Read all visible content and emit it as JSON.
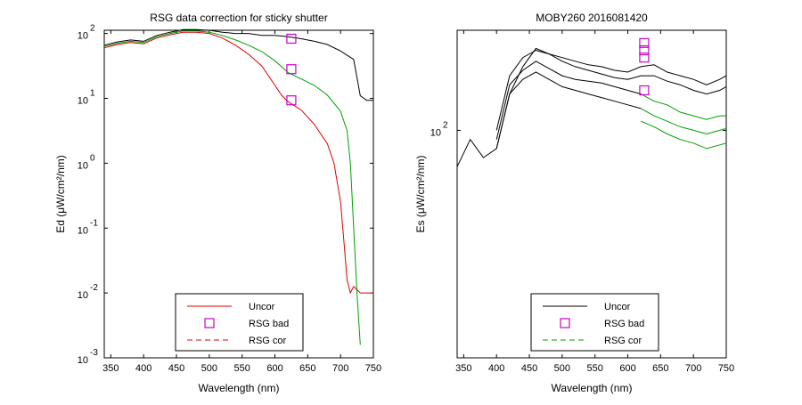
{
  "chart_data": [
    {
      "type": "line",
      "title": "RSG data correction for sticky shutter",
      "xlabel": "Wavelength (nm)",
      "ylabel": "Ed (μW/cm²/nm)",
      "xlim": [
        340,
        750
      ],
      "ylim_log10": [
        -3,
        2.05
      ],
      "yscale": "log",
      "grid": false,
      "legend_position": "bottom-center",
      "xticks": [
        350,
        400,
        450,
        500,
        550,
        600,
        650,
        700,
        750
      ],
      "yticks": [
        {
          "exp": 2,
          "base": "10",
          "power": "2"
        },
        {
          "exp": 1,
          "base": "10",
          "power": "1"
        },
        {
          "exp": 0,
          "base": "10",
          "power": "0"
        },
        {
          "exp": -1,
          "base": "10",
          "power": "-1"
        },
        {
          "exp": -2,
          "base": "10",
          "power": "-2"
        },
        {
          "exp": -3,
          "base": "10",
          "power": "-3"
        }
      ],
      "legend": [
        {
          "label": "Uncor",
          "color": "#e00000",
          "style": "solid"
        },
        {
          "label": "RSG bad",
          "color": "#cc00cc",
          "style": "square"
        },
        {
          "label": "RSG cor",
          "color": "#e00000",
          "style": "dashed"
        }
      ],
      "series": [
        {
          "color": "#000000",
          "x": [
            340,
            360,
            380,
            400,
            420,
            440,
            460,
            480,
            500,
            520,
            540,
            560,
            580,
            600,
            620,
            640,
            660,
            680,
            700,
            720,
            730,
            740,
            750
          ],
          "log10y": [
            1.82,
            1.87,
            1.9,
            1.88,
            1.97,
            2.02,
            2.06,
            2.06,
            2.05,
            2.02,
            2.0,
            2.0,
            1.97,
            1.97,
            1.95,
            1.92,
            1.88,
            1.83,
            1.73,
            1.6,
            1.04,
            0.97,
            0.97
          ]
        },
        {
          "color": "#00a000",
          "x": [
            340,
            360,
            380,
            400,
            420,
            440,
            460,
            480,
            500,
            520,
            540,
            560,
            580,
            600,
            620,
            640,
            660,
            680,
            700,
            710,
            715,
            720,
            725,
            730
          ],
          "log10y": [
            1.8,
            1.85,
            1.88,
            1.86,
            1.95,
            2.0,
            2.04,
            2.04,
            2.02,
            1.97,
            1.9,
            1.82,
            1.72,
            1.58,
            1.4,
            1.3,
            1.2,
            1.05,
            0.8,
            0.5,
            0.0,
            -1.0,
            -2.0,
            -2.8
          ]
        },
        {
          "color": "#e00000",
          "x": [
            340,
            360,
            380,
            400,
            420,
            440,
            460,
            480,
            500,
            520,
            540,
            560,
            580,
            600,
            610,
            620,
            640,
            660,
            680,
            690,
            700,
            705,
            710,
            715,
            720,
            730,
            740,
            750
          ],
          "log10y": [
            1.78,
            1.83,
            1.86,
            1.84,
            1.93,
            1.98,
            2.02,
            2.02,
            2.0,
            1.93,
            1.82,
            1.68,
            1.5,
            1.2,
            1.05,
            0.95,
            0.82,
            0.6,
            0.3,
            0.0,
            -0.6,
            -1.2,
            -1.8,
            -2.0,
            -1.9,
            -2.0,
            -2.0,
            -2.0
          ]
        }
      ],
      "markers": {
        "x": [
          625,
          625,
          625
        ],
        "log10y": [
          1.92,
          1.45,
          0.97
        ],
        "color": "#cc00cc"
      }
    },
    {
      "type": "line",
      "title": "MOBY260  2016081420",
      "xlabel": "Wavelength (nm)",
      "ylabel": "Es (μW/cm²/nm)",
      "xlim": [
        340,
        750
      ],
      "yscale": "log",
      "grid": false,
      "legend_position": "bottom-center",
      "xticks": [
        350,
        400,
        450,
        500,
        550,
        600,
        650,
        700,
        750
      ],
      "yticks": [
        {
          "exp": 2,
          "base": "10",
          "power": "2"
        }
      ],
      "legend": [
        {
          "label": "Uncor",
          "color": "#000000",
          "style": "solid"
        },
        {
          "label": "RSG bad",
          "color": "#cc00cc",
          "style": "square"
        },
        {
          "label": "RSG cor",
          "color": "#00a000",
          "style": "dashed"
        }
      ],
      "series": [
        {
          "color": "#000000",
          "x": [
            340,
            360,
            380,
            400,
            420,
            440,
            460,
            480,
            500,
            520,
            540,
            560,
            580,
            600,
            620,
            640,
            660,
            680,
            700,
            720,
            740,
            750
          ],
          "log10y": [
            1.8,
            1.95,
            1.85,
            1.9,
            2.2,
            2.35,
            2.45,
            2.42,
            2.4,
            2.38,
            2.36,
            2.35,
            2.33,
            2.32,
            2.35,
            2.36,
            2.32,
            2.3,
            2.28,
            2.25,
            2.28,
            2.3
          ]
        },
        {
          "color": "#000000",
          "x": [
            400,
            420,
            440,
            460,
            480,
            500,
            520,
            540,
            560,
            580,
            600,
            620,
            640,
            660,
            680,
            700,
            720,
            740,
            750
          ],
          "log10y": [
            2.0,
            2.3,
            2.4,
            2.44,
            2.42,
            2.38,
            2.35,
            2.33,
            2.31,
            2.29,
            2.28,
            2.3,
            2.3,
            2.27,
            2.25,
            2.22,
            2.2,
            2.22,
            2.24
          ]
        },
        {
          "color": "#000000",
          "x": [
            400,
            420,
            440,
            460,
            480,
            500,
            520,
            540,
            560,
            580,
            600,
            620
          ],
          "log10y": [
            1.95,
            2.25,
            2.33,
            2.38,
            2.34,
            2.3,
            2.28,
            2.27,
            2.26,
            2.24,
            2.22,
            2.2
          ]
        },
        {
          "color": "#000000",
          "x": [
            400,
            420,
            440,
            460,
            480,
            500,
            520,
            540,
            560,
            580,
            600,
            620
          ],
          "log10y": [
            1.9,
            2.2,
            2.28,
            2.32,
            2.28,
            2.24,
            2.22,
            2.2,
            2.18,
            2.16,
            2.14,
            2.12
          ]
        },
        {
          "color": "#00a000",
          "x": [
            620,
            640,
            660,
            680,
            700,
            720,
            740,
            750
          ],
          "log10y": [
            2.2,
            2.16,
            2.14,
            2.1,
            2.08,
            2.06,
            2.08,
            2.08
          ]
        },
        {
          "color": "#00a000",
          "x": [
            620,
            640,
            660,
            680,
            700,
            720,
            740,
            750
          ],
          "log10y": [
            2.12,
            2.08,
            2.05,
            2.02,
            2.0,
            1.98,
            2.0,
            2.01
          ]
        },
        {
          "color": "#00a000",
          "x": [
            620,
            640,
            660,
            680,
            700,
            720,
            740,
            750
          ],
          "log10y": [
            2.05,
            2.02,
            1.98,
            1.95,
            1.93,
            1.9,
            1.92,
            1.93
          ]
        }
      ],
      "markers": {
        "x": [
          625,
          625,
          625,
          625
        ],
        "log10y": [
          2.48,
          2.44,
          2.4,
          2.22
        ],
        "color": "#cc00cc"
      }
    }
  ]
}
